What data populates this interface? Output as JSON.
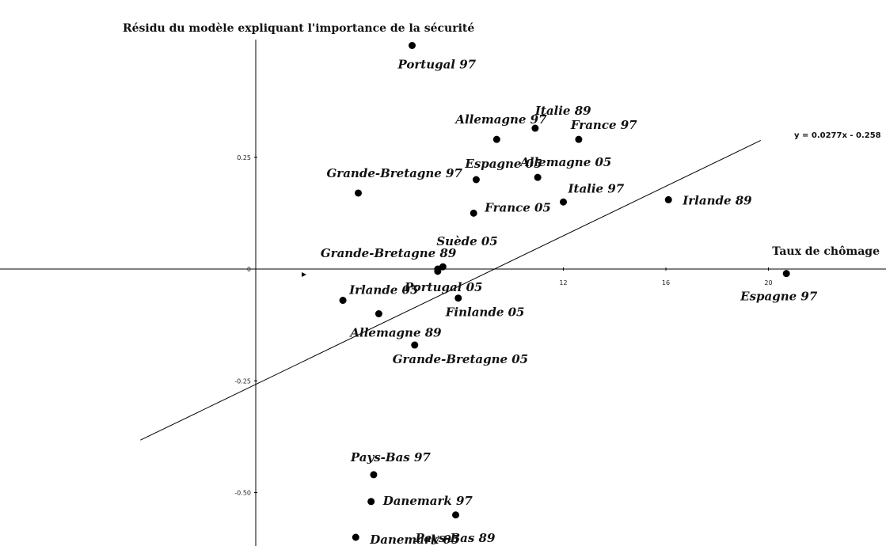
{
  "chart_data": {
    "type": "scatter",
    "ylabel": "Résidu du modèle expliquant l'importance de la sécurité",
    "xlabel": "Taux de chômage",
    "equation": "y = 0.0277x - 0.258",
    "trend": {
      "slope": 0.0277,
      "intercept": -0.258,
      "x_range": [
        -4.5,
        19.7
      ]
    },
    "x_ticks": [
      {
        "value": 12,
        "label": "12"
      },
      {
        "value": 16,
        "label": "16"
      },
      {
        "value": 20,
        "label": "20"
      }
    ],
    "y_ticks": [
      {
        "value": 0.25,
        "label": "0.25"
      },
      {
        "value": 0,
        "label": "0"
      },
      {
        "value": -0.25,
        "label": "-0.25"
      },
      {
        "value": -0.5,
        "label": "-0.50"
      }
    ],
    "points": [
      {
        "label": "Portugal 97",
        "x": 6.1,
        "y": 0.5,
        "lx": -18,
        "ly": 29
      },
      {
        "label": "Allemagne 97",
        "x": 9.4,
        "y": 0.29,
        "lx": -52,
        "ly": -20
      },
      {
        "label": "Italie 89",
        "x": 10.9,
        "y": 0.315,
        "lx": 0,
        "ly": -17
      },
      {
        "label": "France 97",
        "x": 12.6,
        "y": 0.29,
        "lx": -10,
        "ly": -13
      },
      {
        "label": "Espagne 05",
        "x": 8.6,
        "y": 0.2,
        "lx": -14,
        "ly": -15
      },
      {
        "label": "Allemagne 05",
        "x": 11.0,
        "y": 0.205,
        "lx": -22,
        "ly": -14
      },
      {
        "label": "Grande-Bretagne 97",
        "x": 4.0,
        "y": 0.17,
        "lx": -40,
        "ly": -20
      },
      {
        "label": "Italie 97",
        "x": 12.0,
        "y": 0.15,
        "lx": 6,
        "ly": -12
      },
      {
        "label": "Irlande 89",
        "x": 16.1,
        "y": 0.155,
        "lx": 18,
        "ly": 6
      },
      {
        "label": "France 05",
        "x": 8.5,
        "y": 0.125,
        "lx": 14,
        "ly": -2
      },
      {
        "label": "Suède 05",
        "x": 7.3,
        "y": 0.005,
        "lx": -8,
        "ly": -27
      },
      {
        "label": "Grande-Bretagne 89",
        "x": 7.1,
        "y": 0.0,
        "lx": -148,
        "ly": -15
      },
      {
        "label": "Portugal 05",
        "x": 7.1,
        "y": -0.005,
        "lx": -42,
        "ly": 25
      },
      {
        "label": "Finlande 05",
        "x": 7.9,
        "y": -0.065,
        "lx": -16,
        "ly": 23
      },
      {
        "label": "Irlande 05",
        "x": 3.4,
        "y": -0.07,
        "lx": 8,
        "ly": -8
      },
      {
        "label": "Allemagne 89",
        "x": 4.8,
        "y": -0.1,
        "lx": -36,
        "ly": 29
      },
      {
        "label": "Grande-Bretagne 05",
        "x": 6.2,
        "y": -0.17,
        "lx": -28,
        "ly": 23
      },
      {
        "label": "Espagne 97",
        "x": 20.7,
        "y": -0.01,
        "lx": -58,
        "ly": 34
      },
      {
        "label": "Pays-Bas 97",
        "x": 4.6,
        "y": -0.46,
        "lx": -29,
        "ly": -17
      },
      {
        "label": "Danemark 97",
        "x": 4.5,
        "y": -0.52,
        "lx": 15,
        "ly": 4
      },
      {
        "label": "Danemark 05",
        "x": 3.9,
        "y": -0.6,
        "lx": 18,
        "ly": 8
      },
      {
        "label": "Pays-Bas 89",
        "x": 7.8,
        "y": -0.55,
        "lx": -51,
        "ly": 34
      }
    ],
    "grid": false,
    "legend": "none"
  }
}
